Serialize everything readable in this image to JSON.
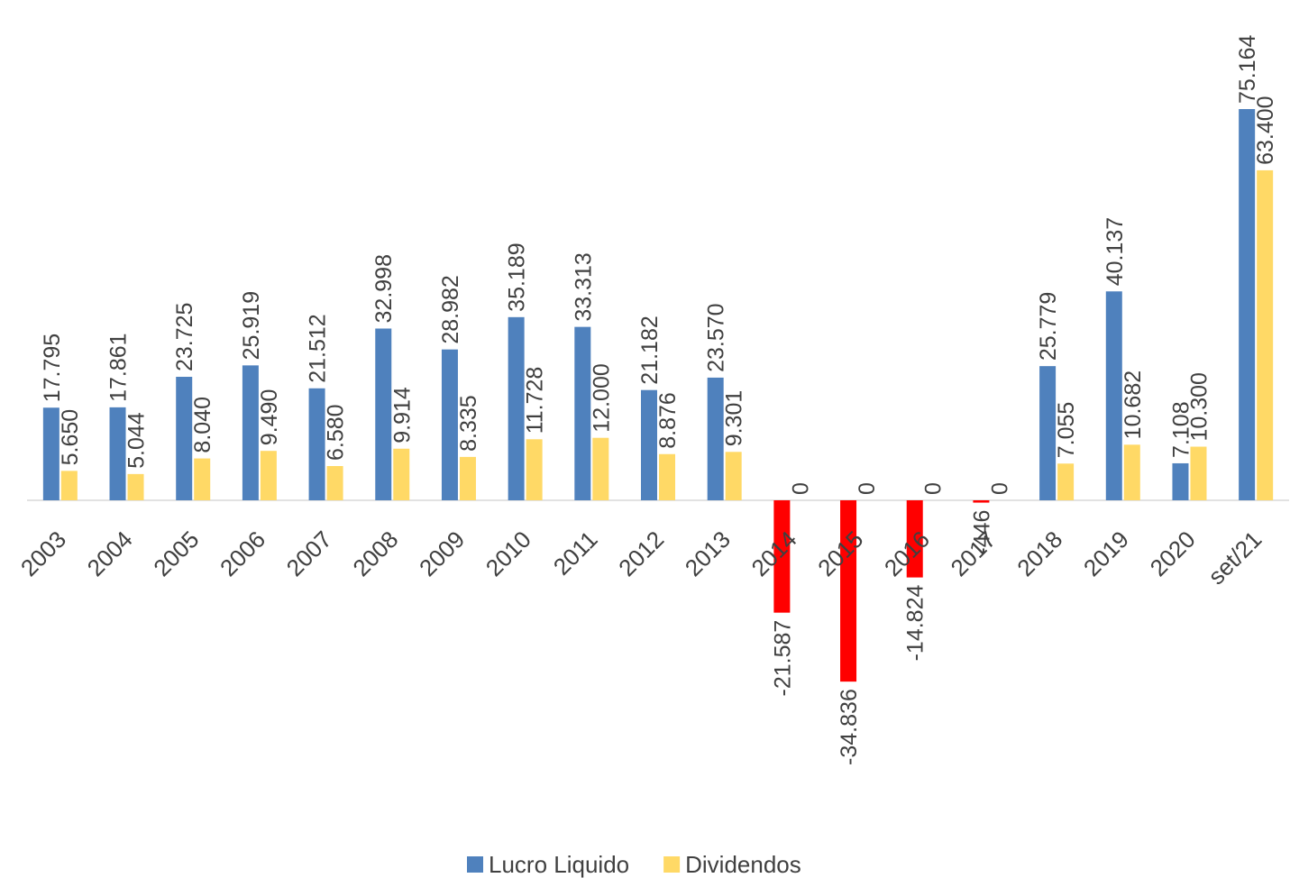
{
  "chart_data": {
    "type": "bar",
    "categories": [
      "2003",
      "2004",
      "2005",
      "2006",
      "2007",
      "2008",
      "2009",
      "2010",
      "2011",
      "2012",
      "2013",
      "2014",
      "2015",
      "2016",
      "2017",
      "2018",
      "2019",
      "2020",
      "set/21"
    ],
    "negative_color": "#ff0000",
    "series": [
      {
        "name": "Lucro Liquido",
        "color": "#4f81bd",
        "values": [
          17795,
          17861,
          23725,
          25919,
          21512,
          32998,
          28982,
          35189,
          33313,
          21182,
          23570,
          -21587,
          -34836,
          -14824,
          -446,
          25779,
          40137,
          7108,
          75164
        ],
        "value_labels": [
          "17.795",
          "17.861",
          "23.725",
          "25.919",
          "21.512",
          "32.998",
          "28.982",
          "35.189",
          "33.313",
          "21.182",
          "23.570",
          "-21.587",
          "-34.836",
          "-14.824",
          "-446",
          "25.779",
          "40.137",
          "7.108",
          "75.164"
        ]
      },
      {
        "name": "Dividendos",
        "color": "#ffd966",
        "values": [
          5650,
          5044,
          8040,
          9490,
          6580,
          9914,
          8335,
          11728,
          12000,
          8876,
          9301,
          0,
          0,
          0,
          0,
          7055,
          10682,
          10300,
          63400
        ],
        "value_labels": [
          "5.650",
          "5.044",
          "8.040",
          "9.490",
          "6.580",
          "9.914",
          "8.335",
          "11.728",
          "12.000",
          "8.876",
          "9.301",
          "0",
          "0",
          "0",
          "0",
          "7.055",
          "10.682",
          "10.300",
          "63.400"
        ]
      }
    ],
    "legend": "bottom"
  }
}
